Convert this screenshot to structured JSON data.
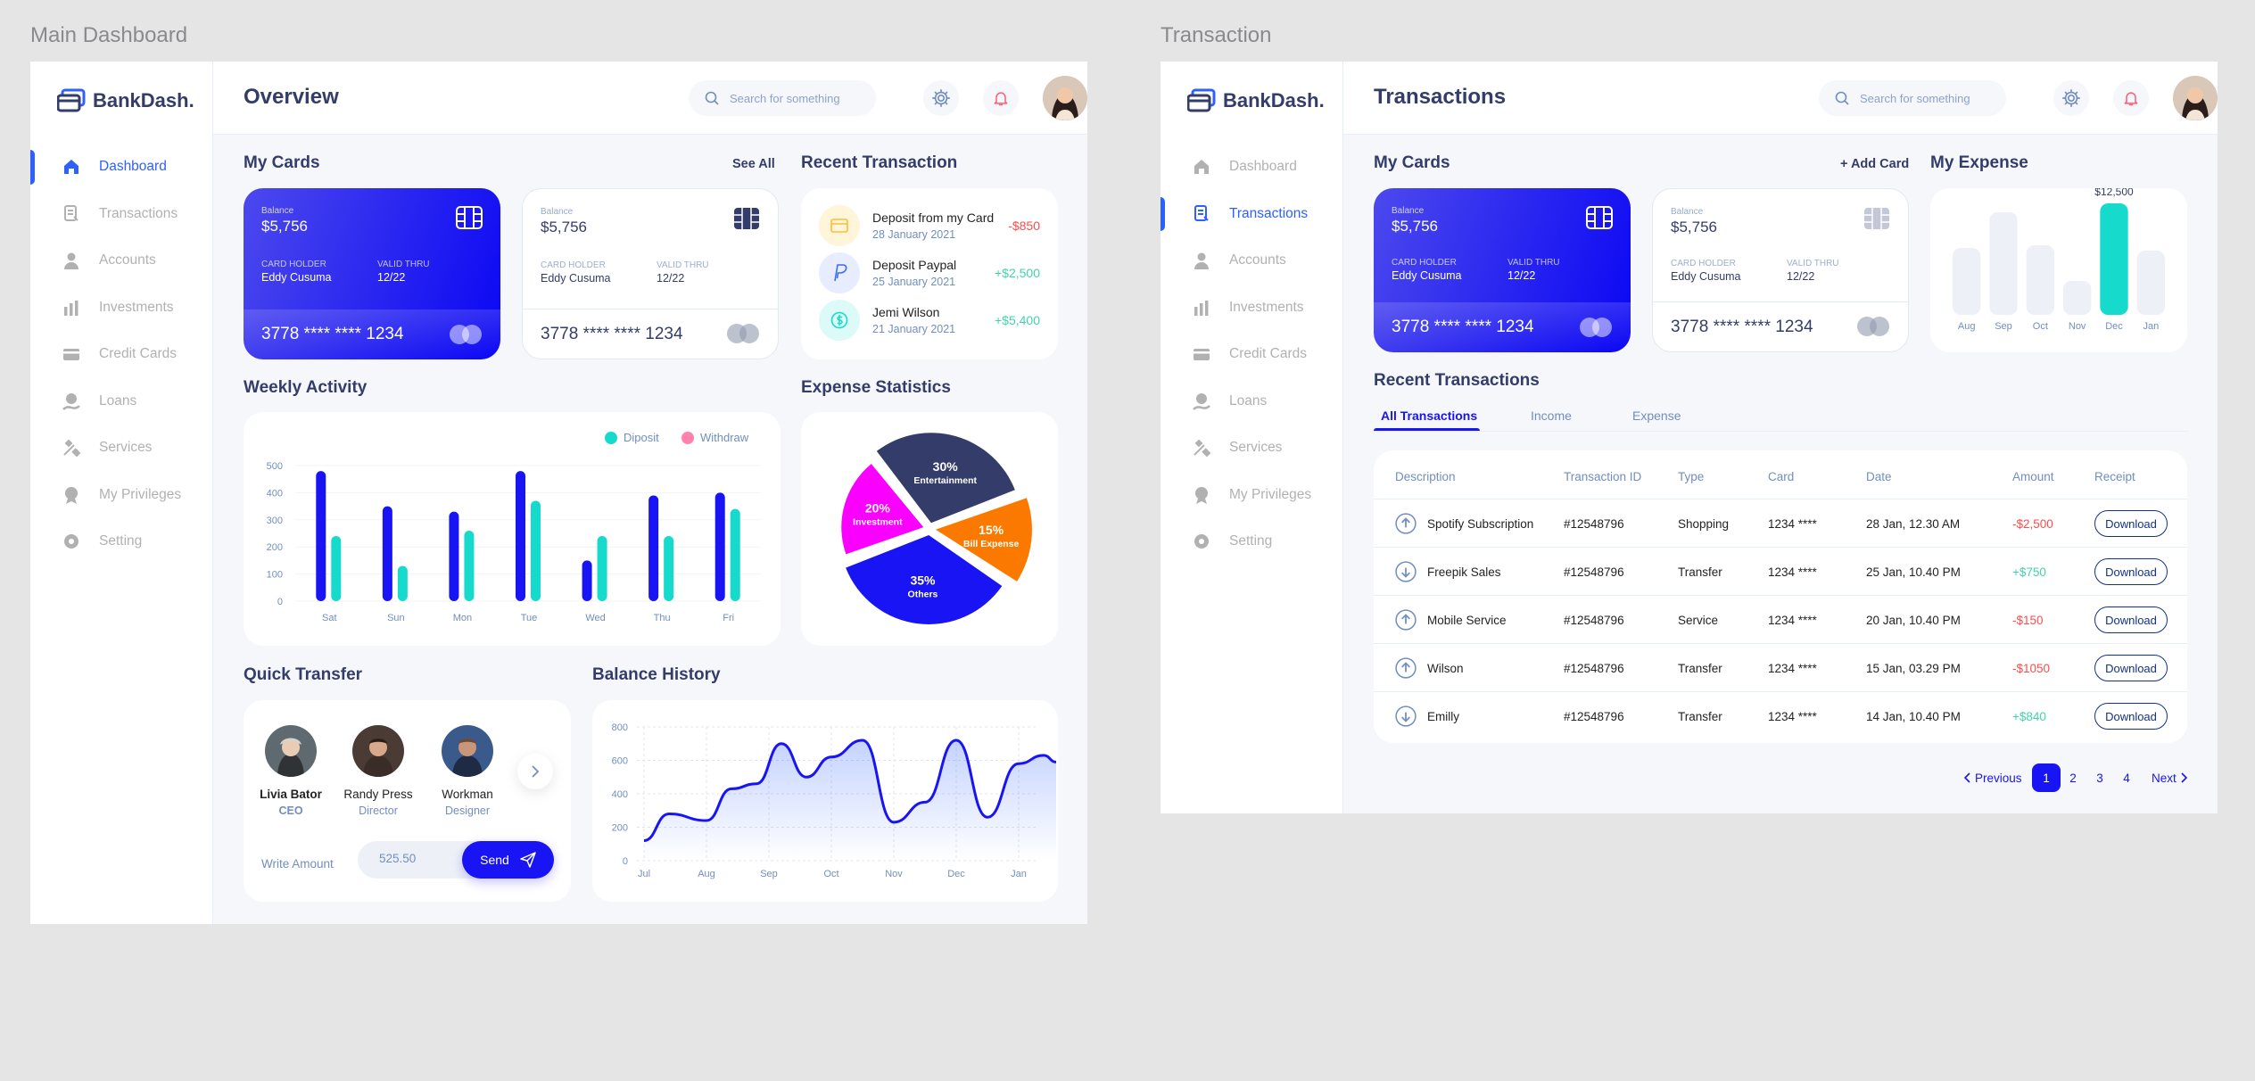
{
  "labels": {
    "main": "Main Dashboard",
    "transaction": "Transaction"
  },
  "logo": "BankDash.",
  "nav": [
    "Dashboard",
    "Transactions",
    "Accounts",
    "Investments",
    "Credit Cards",
    "Loans",
    "Services",
    "My Privileges",
    "Setting"
  ],
  "nav_icons": [
    "home-icon",
    "transfer-icon",
    "user-icon",
    "investment-icon",
    "credit-card-icon",
    "loan-icon",
    "services-icon",
    "privileges-icon",
    "settings-icon"
  ],
  "search_placeholder": "Search for something",
  "colors": {
    "primary": "#1814f3",
    "accent_blue": "#2d60ff",
    "teal": "#16dbcc",
    "pink": "#ff82ac",
    "navy": "#343c6a",
    "orange": "#fc7900",
    "magenta": "#fa00ff"
  },
  "dashboard": {
    "title": "Overview",
    "my_cards": "My Cards",
    "see_all": "See All",
    "recent_transaction": "Recent Transaction",
    "weekly_activity": "Weekly Activity",
    "expense_statistics": "Expense Statistics",
    "quick_transfer": "Quick Transfer",
    "balance_history": "Balance History",
    "cards": [
      {
        "balance_label": "Balance",
        "balance": "$5,756",
        "holder_label": "CARD HOLDER",
        "holder": "Eddy Cusuma",
        "valid_label": "VALID THRU",
        "valid": "12/22",
        "number": "3778 **** **** 1234"
      },
      {
        "balance_label": "Balance",
        "balance": "$5,756",
        "holder_label": "CARD HOLDER",
        "holder": "Eddy Cusuma",
        "valid_label": "VALID THRU",
        "valid": "12/22",
        "number": "3778 **** **** 1234"
      }
    ],
    "transactions": [
      {
        "title": "Deposit from my Card",
        "date": "28 January 2021",
        "amount": "-$850",
        "icon": "card-icon"
      },
      {
        "title": "Deposit Paypal",
        "date": "25 January 2021",
        "amount": "+$2,500",
        "icon": "paypal-icon"
      },
      {
        "title": "Jemi Wilson",
        "date": "21 January 2021",
        "amount": "+$5,400",
        "icon": "dollar-icon"
      }
    ],
    "transfer": {
      "people": [
        {
          "name": "Livia Bator",
          "role": "CEO"
        },
        {
          "name": "Randy Press",
          "role": "Director"
        },
        {
          "name": "Workman",
          "role": "Designer"
        }
      ],
      "amount_label": "Write Amount",
      "amount_value": "525.50",
      "send": "Send"
    }
  },
  "transactions_page": {
    "title": "Transactions",
    "my_cards": "My Cards",
    "add_card": "+ Add Card",
    "my_expense": "My Expense",
    "recent_transactions": "Recent Transactions",
    "tabs": [
      "All Transactions",
      "Income",
      "Expense"
    ],
    "table": {
      "headers": [
        "Description",
        "Transaction ID",
        "Type",
        "Card",
        "Date",
        "Amount",
        "Receipt"
      ],
      "rows": [
        {
          "direction": "up",
          "description": "Spotify Subscription",
          "id": "#12548796",
          "type": "Shopping",
          "card": "1234 ****",
          "date": "28 Jan, 12.30 AM",
          "amount": "-$2,500",
          "receipt": "Download"
        },
        {
          "direction": "down",
          "description": "Freepik Sales",
          "id": "#12548796",
          "type": "Transfer",
          "card": "1234 ****",
          "date": "25 Jan, 10.40 PM",
          "amount": "+$750",
          "receipt": "Download"
        },
        {
          "direction": "up",
          "description": "Mobile Service",
          "id": "#12548796",
          "type": "Service",
          "card": "1234 ****",
          "date": "20 Jan, 10.40 PM",
          "amount": "-$150",
          "receipt": "Download"
        },
        {
          "direction": "up",
          "description": "Wilson",
          "id": "#12548796",
          "type": "Transfer",
          "card": "1234 ****",
          "date": "15 Jan, 03.29 PM",
          "amount": "-$1050",
          "receipt": "Download"
        },
        {
          "direction": "down",
          "description": "Emilly",
          "id": "#12548796",
          "type": "Transfer",
          "card": "1234 ****",
          "date": "14 Jan, 10.40 PM",
          "amount": "+$840",
          "receipt": "Download"
        }
      ]
    },
    "pagination": {
      "prev": "Previous",
      "pages": [
        "1",
        "2",
        "3",
        "4"
      ],
      "active": "1",
      "next": "Next"
    }
  },
  "chart_data": [
    {
      "type": "bar",
      "categories": [
        "Sat",
        "Sun",
        "Mon",
        "Tue",
        "Wed",
        "Thu",
        "Fri"
      ],
      "series": [
        {
          "name": "Diposit",
          "values": [
            480,
            350,
            330,
            480,
            150,
            390,
            400
          ],
          "color": "#1814f3"
        },
        {
          "name": "Withdraw",
          "values": [
            240,
            130,
            260,
            370,
            240,
            240,
            340
          ],
          "color": "#16dbcc"
        }
      ],
      "yticks": [
        0,
        100,
        200,
        300,
        400,
        500
      ],
      "ylim": [
        0,
        500
      ],
      "legend": "top-right",
      "grid": true
    },
    {
      "type": "pie",
      "labels": [
        "Entertainment",
        "Bill Expense",
        "Others",
        "Investment"
      ],
      "values": [
        30,
        15,
        35,
        20
      ],
      "display": [
        "30%",
        "15%",
        "35%",
        "20%"
      ],
      "colors": [
        "#343c6a",
        "#fc7900",
        "#1814f3",
        "#fa00ff"
      ]
    },
    {
      "type": "area",
      "x": [
        "Jul",
        "Aug",
        "Sep",
        "Oct",
        "Nov",
        "Dec",
        "Jan"
      ],
      "yticks": [
        0,
        200,
        400,
        600,
        800
      ],
      "ylim": [
        0,
        800
      ],
      "points": [
        [
          0,
          120
        ],
        [
          0.4,
          280
        ],
        [
          1,
          240
        ],
        [
          1.4,
          430
        ],
        [
          1.8,
          460
        ],
        [
          2.2,
          700
        ],
        [
          2.6,
          500
        ],
        [
          3,
          620
        ],
        [
          3.5,
          720
        ],
        [
          4,
          230
        ],
        [
          4.5,
          350
        ],
        [
          5,
          720
        ],
        [
          5.5,
          260
        ],
        [
          6,
          580
        ],
        [
          6.4,
          630
        ],
        [
          6.6,
          590
        ]
      ],
      "color": "#1814f3",
      "grid": true
    },
    {
      "type": "bar",
      "categories": [
        "Aug",
        "Sep",
        "Oct",
        "Nov",
        "Dec",
        "Jan"
      ],
      "values": [
        7500,
        11500,
        7800,
        3800,
        12500,
        7200
      ],
      "highlight": "Dec",
      "highlight_label": "$12,500",
      "colors": {
        "default": "#edf0f7",
        "highlight": "#16dbcc"
      }
    }
  ]
}
